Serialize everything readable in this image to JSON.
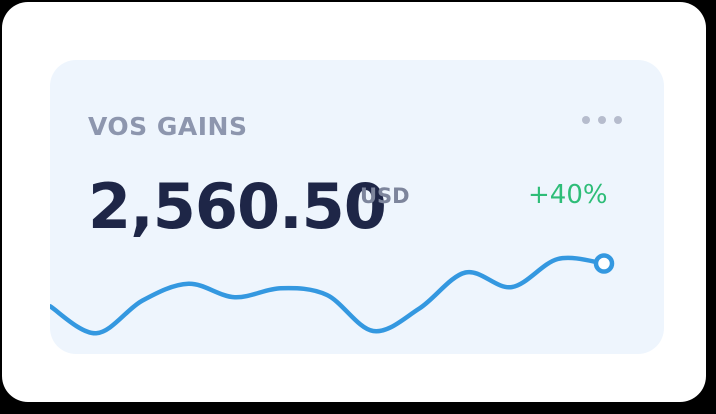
{
  "widget": {
    "title": "VOS GAINS",
    "amount": "2,560.50",
    "currency": "USD",
    "change": "+40%",
    "menu_icon": "more-horizontal-icon"
  },
  "colors": {
    "background": "#ffffff",
    "card": "#eef5fd",
    "title": "#8d96ae",
    "amount": "#1e2647",
    "currency": "#7d859c",
    "change": "#2ebd78",
    "line": "#3498e0",
    "menu_dots": "#b6bccd"
  },
  "chart_data": {
    "type": "line",
    "title": "",
    "xlabel": "",
    "ylabel": "",
    "grid": false,
    "legend": "none",
    "x": [
      0,
      1,
      2,
      3,
      4,
      5,
      6,
      7,
      8,
      9,
      10,
      11,
      12
    ],
    "y": [
      30,
      6,
      35,
      50,
      38,
      46,
      40,
      8,
      28,
      60,
      47,
      72,
      68
    ],
    "ylim": [
      0,
      80
    ],
    "marker_on_last": true
  }
}
